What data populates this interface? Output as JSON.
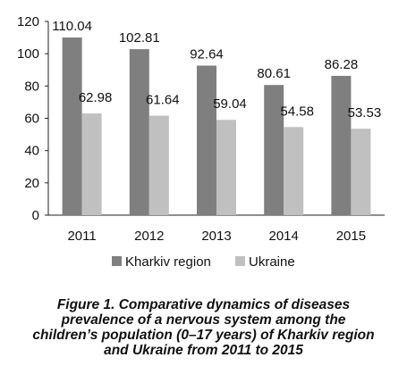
{
  "chart_data": {
    "type": "bar",
    "categories": [
      "2011",
      "2012",
      "2013",
      "2014",
      "2015"
    ],
    "series": [
      {
        "name": "Kharkiv region",
        "values": [
          110.04,
          102.81,
          92.64,
          80.61,
          86.28
        ],
        "color": "#7f7f7f"
      },
      {
        "name": "Ukraine",
        "values": [
          62.98,
          61.64,
          59.04,
          54.58,
          53.53
        ],
        "color": "#c0c0c0"
      }
    ],
    "data_labels": [
      [
        "110.04",
        "102.81",
        "92.64",
        "80.61",
        "86.28"
      ],
      [
        "62.98",
        "61.64",
        "59.04",
        "54.58",
        "53.53"
      ]
    ],
    "yticks": [
      "0",
      "20",
      "40",
      "60",
      "80",
      "100",
      "120"
    ],
    "ylim": [
      0,
      120
    ],
    "grid": false,
    "legend": "bottom"
  },
  "caption_lines": [
    "Figure 1. Comparative dynamics of diseases",
    "prevalence of a nervous system among the",
    "children’s population (0–17 years) of Kharkiv region",
    "and Ukraine from 2011 to 2015"
  ]
}
